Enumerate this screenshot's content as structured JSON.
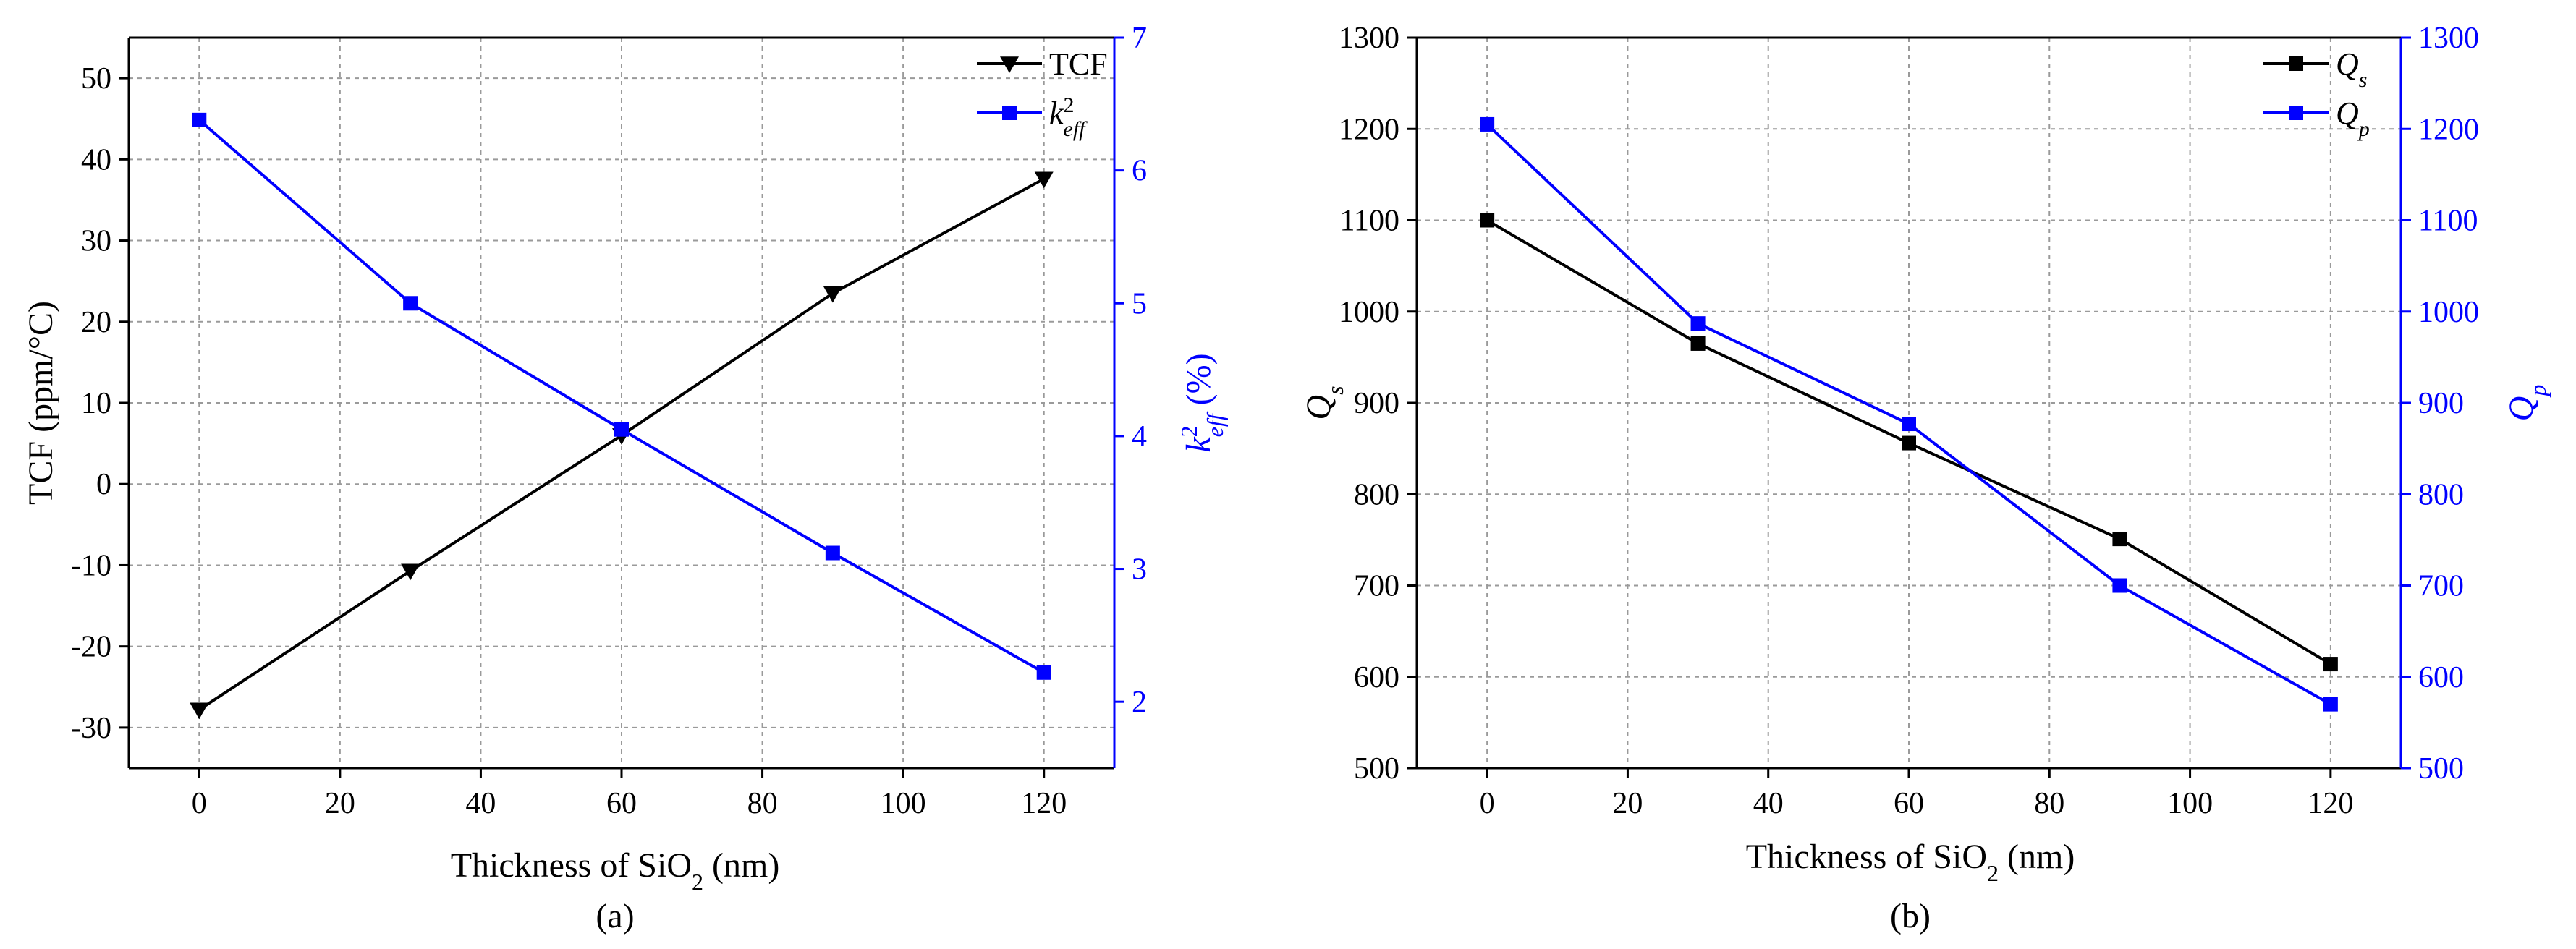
{
  "chart_data": [
    {
      "type": "line",
      "panel_label": "(a)",
      "xlabel_prefix": "Thickness of SiO",
      "xlabel_sub": "2",
      "xlabel_suffix": " (nm)",
      "xlim": [
        -10,
        130
      ],
      "xticks": [
        0,
        20,
        40,
        60,
        80,
        100,
        120
      ],
      "grid": true,
      "legend_position": "top-right",
      "left_axis": {
        "label": "TCF (ppm/°C)",
        "ylim": [
          -35,
          55
        ],
        "ticks": [
          -30,
          -20,
          -10,
          0,
          10,
          20,
          30,
          40,
          50
        ],
        "color": "#000000"
      },
      "right_axis": {
        "label_k": "k",
        "label_sup": "2",
        "label_sub": "eff",
        "label_suffix": " (%)",
        "ylim": [
          1.5,
          7
        ],
        "ticks": [
          2,
          3,
          4,
          5,
          6,
          7
        ],
        "color": "#0000ff"
      },
      "series": [
        {
          "name": "TCF",
          "axis": "left",
          "marker": "triangle-down",
          "color": "#000000",
          "x": [
            0,
            30,
            60,
            90,
            120
          ],
          "values": [
            -27.8,
            -10.7,
            6.0,
            23.5,
            37.6
          ]
        },
        {
          "name_k": "k",
          "name_sup": "2",
          "name_sub": "eff",
          "axis": "right",
          "marker": "square",
          "color": "#0000ff",
          "x": [
            0,
            30,
            60,
            90,
            120
          ],
          "values": [
            6.38,
            5.0,
            4.05,
            3.12,
            2.22
          ]
        }
      ]
    },
    {
      "type": "line",
      "panel_label": "(b)",
      "xlabel_prefix": "Thickness of SiO",
      "xlabel_sub": "2",
      "xlabel_suffix": " (nm)",
      "xlim": [
        -10,
        130
      ],
      "xticks": [
        0,
        20,
        40,
        60,
        80,
        100,
        120
      ],
      "grid": true,
      "legend_position": "top-right",
      "left_axis": {
        "label_q": "Q",
        "label_sub": "s",
        "ylim": [
          500,
          1300
        ],
        "ticks": [
          500,
          600,
          700,
          800,
          900,
          1000,
          1100,
          1200,
          1300
        ],
        "color": "#000000"
      },
      "right_axis": {
        "label_q": "Q",
        "label_sub": "p",
        "ylim": [
          500,
          1300
        ],
        "ticks": [
          500,
          600,
          700,
          800,
          900,
          1000,
          1100,
          1200,
          1300
        ],
        "color": "#0000ff"
      },
      "series": [
        {
          "name_q": "Q",
          "name_sub": "s",
          "axis": "left",
          "marker": "square",
          "color": "#000000",
          "x": [
            0,
            30,
            60,
            90,
            120
          ],
          "values": [
            1100,
            965,
            856,
            751,
            614
          ]
        },
        {
          "name_q": "Q",
          "name_sub": "p",
          "axis": "right",
          "marker": "square",
          "color": "#0000ff",
          "x": [
            0,
            30,
            60,
            90,
            120
          ],
          "values": [
            1205,
            987,
            877,
            700,
            570
          ]
        }
      ]
    }
  ]
}
